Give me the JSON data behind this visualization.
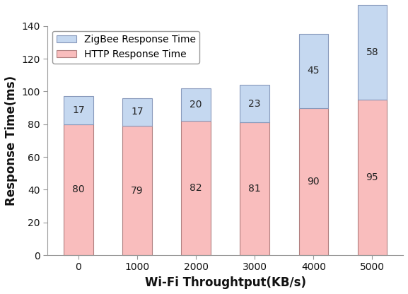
{
  "categories": [
    "0",
    "1000",
    "2000",
    "3000",
    "4000",
    "5000"
  ],
  "http_values": [
    80,
    79,
    82,
    81,
    90,
    95
  ],
  "zigbee_values": [
    17,
    17,
    20,
    23,
    45,
    58
  ],
  "http_color": "#F9BDBD",
  "zigbee_color": "#C5D8F0",
  "http_edge_color": "#B08080",
  "zigbee_edge_color": "#8899BB",
  "xlabel": "Wi-Fi Throughtput(KB/s)",
  "ylabel": "Response Time(ms)",
  "ylim": [
    0,
    140
  ],
  "yticks": [
    0,
    20,
    40,
    60,
    80,
    100,
    120,
    140
  ],
  "legend_labels": [
    "ZigBee Response Time",
    "HTTP Response Time"
  ],
  "bar_width": 0.5,
  "label_fontsize": 12,
  "tick_fontsize": 10,
  "annotation_fontsize": 10,
  "fig_bg": "#FFFFFF",
  "ax_bg": "#FFFFFF"
}
